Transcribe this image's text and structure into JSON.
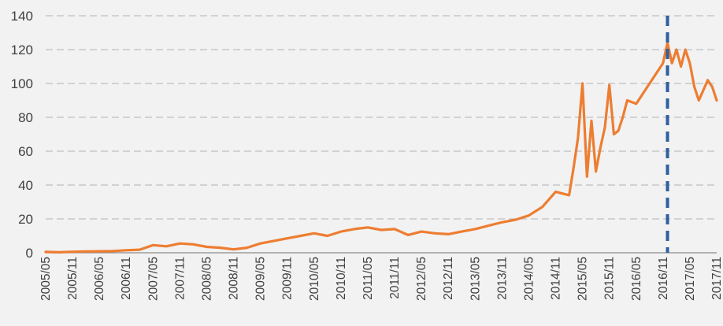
{
  "chart_data": {
    "type": "line",
    "ylim": [
      0,
      140
    ],
    "yticks": [
      0,
      20,
      40,
      60,
      80,
      100,
      120,
      140
    ],
    "y_tick_labels": [
      "0",
      "20",
      "40",
      "60",
      "80",
      "100",
      "120",
      "140"
    ],
    "x_tick_labels": [
      "2005/05",
      "2005/11",
      "2006/05",
      "2006/11",
      "2007/05",
      "2007/11",
      "2008/05",
      "2008/11",
      "2009/05",
      "2009/11",
      "2010/05",
      "2010/11",
      "2011/05",
      "2011/11",
      "2012/05",
      "2012/11",
      "2013/05",
      "2013/11",
      "2014/05",
      "2014/11",
      "2015/05",
      "2015/11",
      "2016/05",
      "2016/11",
      "2017/05",
      "2017/11"
    ],
    "x_range": [
      "2005/05",
      "2017/11"
    ],
    "grid": true,
    "gridlines": "horizontal-dashed",
    "series": [
      {
        "color": "#ed7d31",
        "points": [
          [
            "2005/05",
            0.5
          ],
          [
            "2005/08",
            0.3
          ],
          [
            "2005/11",
            0.6
          ],
          [
            "2006/02",
            0.8
          ],
          [
            "2006/05",
            0.9
          ],
          [
            "2006/08",
            1.0
          ],
          [
            "2006/11",
            1.5
          ],
          [
            "2007/02",
            1.8
          ],
          [
            "2007/05",
            4.5
          ],
          [
            "2007/08",
            3.8
          ],
          [
            "2007/11",
            5.5
          ],
          [
            "2008/02",
            5.0
          ],
          [
            "2008/05",
            3.5
          ],
          [
            "2008/08",
            3.0
          ],
          [
            "2008/11",
            2.0
          ],
          [
            "2009/02",
            3.0
          ],
          [
            "2009/05",
            5.5
          ],
          [
            "2009/08",
            7.0
          ],
          [
            "2009/11",
            8.5
          ],
          [
            "2010/02",
            10.0
          ],
          [
            "2010/05",
            11.5
          ],
          [
            "2010/08",
            10.0
          ],
          [
            "2010/11",
            12.5
          ],
          [
            "2011/02",
            14.0
          ],
          [
            "2011/05",
            15.0
          ],
          [
            "2011/08",
            13.5
          ],
          [
            "2011/11",
            14.0
          ],
          [
            "2012/02",
            10.5
          ],
          [
            "2012/05",
            12.5
          ],
          [
            "2012/08",
            11.5
          ],
          [
            "2012/11",
            11.0
          ],
          [
            "2013/02",
            12.5
          ],
          [
            "2013/05",
            14.0
          ],
          [
            "2013/08",
            16.0
          ],
          [
            "2013/11",
            18.0
          ],
          [
            "2014/02",
            19.5
          ],
          [
            "2014/05",
            22.0
          ],
          [
            "2014/08",
            27.0
          ],
          [
            "2014/11",
            36.0
          ],
          [
            "2015/02",
            34.0
          ],
          [
            "2015/03",
            50.0
          ],
          [
            "2015/04",
            68.0
          ],
          [
            "2015/05",
            100.0
          ],
          [
            "2015/06",
            45.0
          ],
          [
            "2015/07",
            78.0
          ],
          [
            "2015/08",
            48.0
          ],
          [
            "2015/09",
            62.0
          ],
          [
            "2015/10",
            74.0
          ],
          [
            "2015/11",
            99.0
          ],
          [
            "2015/12",
            70.0
          ],
          [
            "2016/01",
            72.0
          ],
          [
            "2016/02",
            80.0
          ],
          [
            "2016/03",
            90.0
          ],
          [
            "2016/05",
            88.0
          ],
          [
            "2016/08",
            100.0
          ],
          [
            "2016/11",
            112.0
          ],
          [
            "2016/12",
            124.0
          ],
          [
            "2017/01",
            112.0
          ],
          [
            "2017/02",
            120.0
          ],
          [
            "2017/03",
            110.0
          ],
          [
            "2017/04",
            120.0
          ],
          [
            "2017/05",
            112.0
          ],
          [
            "2017/06",
            98.0
          ],
          [
            "2017/07",
            90.0
          ],
          [
            "2017/08",
            96.0
          ],
          [
            "2017/09",
            102.0
          ],
          [
            "2017/10",
            98.0
          ],
          [
            "2017/11",
            90.0
          ]
        ]
      }
    ],
    "vertical_marker": {
      "x": "2016/12",
      "color": "#2e5f9e",
      "style": "dashed"
    }
  }
}
